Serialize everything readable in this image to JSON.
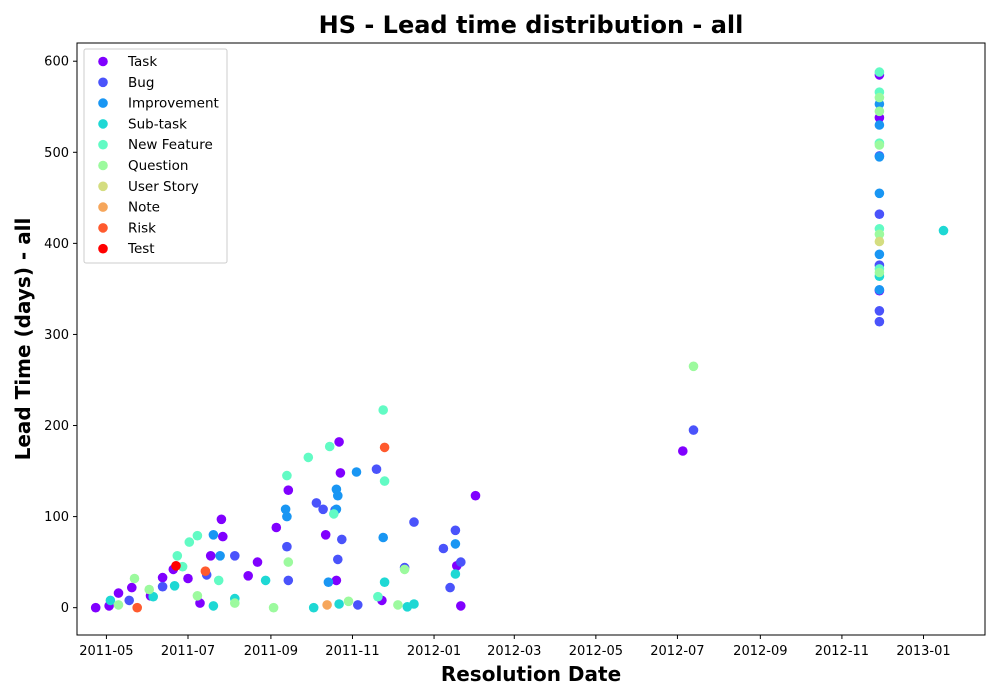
{
  "chart_data": {
    "type": "scatter",
    "title": "HS - Lead time distribution - all",
    "xlabel": "Resolution Date",
    "ylabel": "Lead Time (days) - all",
    "x_ticks": [
      "2011-05",
      "2011-07",
      "2011-09",
      "2011-11",
      "2012-01",
      "2012-03",
      "2012-05",
      "2012-07",
      "2012-09",
      "2012-11",
      "2013-01"
    ],
    "x_range": [
      "2011-04-09",
      "2013-02-16"
    ],
    "y_ticks": [
      0,
      100,
      200,
      300,
      400,
      500,
      600
    ],
    "ylim": [
      -30,
      620
    ],
    "legend_position": "top-left",
    "series": [
      {
        "name": "Task",
        "color": "#8000ff",
        "points": [
          [
            "2011-04-23",
            0
          ],
          [
            "2011-05-03",
            2
          ],
          [
            "2011-05-10",
            16
          ],
          [
            "2011-05-20",
            22
          ],
          [
            "2011-06-03",
            13
          ],
          [
            "2011-06-12",
            33
          ],
          [
            "2011-06-20",
            42
          ],
          [
            "2011-07-01",
            32
          ],
          [
            "2011-07-10",
            5
          ],
          [
            "2011-07-18",
            57
          ],
          [
            "2011-07-26",
            97
          ],
          [
            "2011-07-27",
            78
          ],
          [
            "2011-08-15",
            35
          ],
          [
            "2011-08-22",
            50
          ],
          [
            "2011-09-05",
            88
          ],
          [
            "2011-09-14",
            129
          ],
          [
            "2011-10-12",
            80
          ],
          [
            "2011-10-20",
            30
          ],
          [
            "2011-10-22",
            182
          ],
          [
            "2011-10-23",
            148
          ],
          [
            "2011-11-23",
            8
          ],
          [
            "2012-01-18",
            46
          ],
          [
            "2012-01-21",
            2
          ],
          [
            "2012-02-01",
            123
          ],
          [
            "2012-07-05",
            172
          ],
          [
            "2012-11-29",
            585
          ],
          [
            "2012-11-29",
            538
          ],
          [
            "2012-11-29",
            348
          ]
        ]
      },
      {
        "name": "Bug",
        "color": "#4a53fb",
        "points": [
          [
            "2011-05-18",
            8
          ],
          [
            "2011-06-12",
            23
          ],
          [
            "2011-07-15",
            36
          ],
          [
            "2011-08-05",
            57
          ],
          [
            "2011-09-13",
            67
          ],
          [
            "2011-09-14",
            30
          ],
          [
            "2011-10-05",
            115
          ],
          [
            "2011-10-10",
            108
          ],
          [
            "2011-10-19",
            107
          ],
          [
            "2011-10-21",
            53
          ],
          [
            "2011-10-24",
            75
          ],
          [
            "2011-11-05",
            3
          ],
          [
            "2011-11-19",
            152
          ],
          [
            "2011-12-10",
            44
          ],
          [
            "2011-12-17",
            94
          ],
          [
            "2012-01-08",
            65
          ],
          [
            "2012-01-13",
            22
          ],
          [
            "2012-01-17",
            85
          ],
          [
            "2012-01-21",
            50
          ],
          [
            "2012-07-13",
            195
          ],
          [
            "2012-11-29",
            432
          ],
          [
            "2012-11-29",
            376
          ],
          [
            "2012-11-29",
            326
          ],
          [
            "2012-11-29",
            314
          ],
          [
            "2012-11-29",
            496
          ]
        ]
      },
      {
        "name": "Improvement",
        "color": "#1996f3",
        "points": [
          [
            "2011-07-20",
            80
          ],
          [
            "2011-07-25",
            57
          ],
          [
            "2011-09-12",
            108
          ],
          [
            "2011-09-13",
            100
          ],
          [
            "2011-10-20",
            130
          ],
          [
            "2011-10-21",
            123
          ],
          [
            "2011-10-20",
            108
          ],
          [
            "2011-10-14",
            28
          ],
          [
            "2011-11-04",
            149
          ],
          [
            "2011-11-24",
            77
          ],
          [
            "2012-01-17",
            70
          ],
          [
            "2012-11-29",
            553
          ],
          [
            "2012-11-29",
            530
          ],
          [
            "2012-11-29",
            495
          ],
          [
            "2012-11-29",
            455
          ],
          [
            "2012-11-29",
            388
          ],
          [
            "2012-11-29",
            349
          ]
        ]
      },
      {
        "name": "Sub-task",
        "color": "#1ed8d4",
        "points": [
          [
            "2011-05-04",
            8
          ],
          [
            "2011-06-05",
            12
          ],
          [
            "2011-06-21",
            24
          ],
          [
            "2011-07-20",
            2
          ],
          [
            "2011-08-05",
            10
          ],
          [
            "2011-08-28",
            30
          ],
          [
            "2011-10-03",
            0
          ],
          [
            "2011-10-22",
            4
          ],
          [
            "2011-11-25",
            28
          ],
          [
            "2011-12-12",
            1
          ],
          [
            "2011-12-17",
            4
          ],
          [
            "2012-01-17",
            37
          ],
          [
            "2013-01-16",
            414
          ],
          [
            "2012-11-29",
            364
          ]
        ]
      },
      {
        "name": "New Feature",
        "color": "#62fbc4",
        "points": [
          [
            "2011-06-23",
            57
          ],
          [
            "2011-06-27",
            45
          ],
          [
            "2011-07-02",
            72
          ],
          [
            "2011-07-08",
            79
          ],
          [
            "2011-07-24",
            30
          ],
          [
            "2011-09-13",
            145
          ],
          [
            "2011-09-29",
            165
          ],
          [
            "2011-10-15",
            177
          ],
          [
            "2011-10-18",
            103
          ],
          [
            "2011-11-24",
            217
          ],
          [
            "2011-11-25",
            139
          ],
          [
            "2011-11-20",
            12
          ],
          [
            "2012-11-29",
            588
          ],
          [
            "2012-11-29",
            566
          ],
          [
            "2012-11-29",
            510
          ],
          [
            "2012-11-29",
            416
          ],
          [
            "2012-11-29",
            372
          ]
        ]
      },
      {
        "name": "Question",
        "color": "#9cfa9e",
        "points": [
          [
            "2011-05-10",
            3
          ],
          [
            "2011-05-22",
            32
          ],
          [
            "2011-06-02",
            20
          ],
          [
            "2011-07-08",
            13
          ],
          [
            "2011-08-05",
            5
          ],
          [
            "2011-09-03",
            0
          ],
          [
            "2011-09-14",
            50
          ],
          [
            "2011-10-29",
            7
          ],
          [
            "2011-12-05",
            3
          ],
          [
            "2011-12-10",
            42
          ],
          [
            "2012-07-13",
            265
          ],
          [
            "2012-11-29",
            560
          ],
          [
            "2012-11-29",
            545
          ],
          [
            "2012-11-29",
            508
          ],
          [
            "2012-11-29",
            410
          ],
          [
            "2012-11-29",
            368
          ]
        ]
      },
      {
        "name": "User Story",
        "color": "#d4dd80",
        "points": [
          [
            "2012-11-29",
            402
          ]
        ]
      },
      {
        "name": "Note",
        "color": "#f6a65b",
        "points": [
          [
            "2011-10-13",
            3
          ]
        ]
      },
      {
        "name": "Risk",
        "color": "#ff5a2e",
        "points": [
          [
            "2011-05-24",
            0
          ],
          [
            "2011-07-14",
            40
          ],
          [
            "2011-11-25",
            176
          ]
        ]
      },
      {
        "name": "Test",
        "color": "#ff0000",
        "points": [
          [
            "2011-06-22",
            46
          ]
        ]
      }
    ]
  }
}
